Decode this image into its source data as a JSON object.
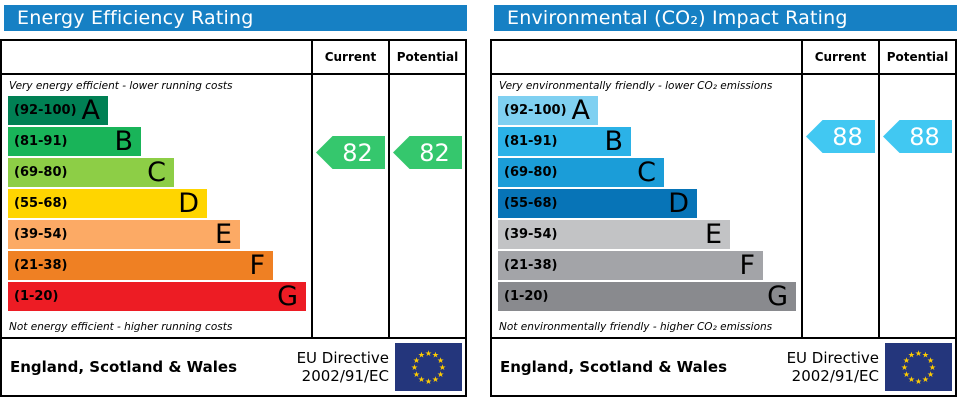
{
  "shared": {
    "header_bg": "#1680c4",
    "border_color": "#000000",
    "flag_bg": "#24367c",
    "flag_star_color": "#ffcc00",
    "footer_region": "England, Scotland & Wales",
    "directive_lines": [
      "EU Directive",
      "2002/91/EC"
    ]
  },
  "chart_data": [
    {
      "type": "bar",
      "variant": "epc-rating-bands",
      "title": "Energy Efficiency Rating",
      "columns": [
        "Current",
        "Potential"
      ],
      "top_note": "Very energy efficient - lower running costs",
      "bottom_note": "Not energy efficient - higher running costs",
      "bands": [
        {
          "letter": "A",
          "label": "(92-100)",
          "low": 92,
          "high": 100,
          "color": "#008054"
        },
        {
          "letter": "B",
          "label": "(81-91)",
          "low": 81,
          "high": 91,
          "color": "#19b459"
        },
        {
          "letter": "C",
          "label": "(69-80)",
          "low": 69,
          "high": 80,
          "color": "#8dce46"
        },
        {
          "letter": "D",
          "label": "(55-68)",
          "low": 55,
          "high": 68,
          "color": "#ffd500"
        },
        {
          "letter": "E",
          "label": "(39-54)",
          "low": 39,
          "high": 54,
          "color": "#fcaa65"
        },
        {
          "letter": "F",
          "label": "(21-38)",
          "low": 21,
          "high": 38,
          "color": "#ef8023"
        },
        {
          "letter": "G",
          "label": "(1-20)",
          "low": 1,
          "high": 20,
          "color": "#ed1c24"
        }
      ],
      "current": 82,
      "potential": 82,
      "arrow_color": "#35c76d"
    },
    {
      "type": "bar",
      "variant": "epc-rating-bands",
      "title": "Environmental (CO₂) Impact Rating",
      "columns": [
        "Current",
        "Potential"
      ],
      "top_note": "Very environmentally friendly - lower CO₂ emissions",
      "bottom_note": "Not environmentally friendly - higher CO₂ emissions",
      "bands": [
        {
          "letter": "A",
          "label": "(92-100)",
          "low": 92,
          "high": 100,
          "color": "#7fd0f1"
        },
        {
          "letter": "B",
          "label": "(81-91)",
          "low": 81,
          "high": 91,
          "color": "#2bb2e7"
        },
        {
          "letter": "C",
          "label": "(69-80)",
          "low": 69,
          "high": 80,
          "color": "#1b9dd8"
        },
        {
          "letter": "D",
          "label": "(55-68)",
          "low": 55,
          "high": 68,
          "color": "#0774b7"
        },
        {
          "letter": "E",
          "label": "(39-54)",
          "low": 39,
          "high": 54,
          "color": "#c2c3c5"
        },
        {
          "letter": "F",
          "label": "(21-38)",
          "low": 21,
          "high": 38,
          "color": "#a3a4a8"
        },
        {
          "letter": "G",
          "label": "(1-20)",
          "low": 1,
          "high": 20,
          "color": "#898a8e"
        }
      ],
      "current": 88,
      "potential": 88,
      "arrow_color": "#41c8f2"
    }
  ]
}
